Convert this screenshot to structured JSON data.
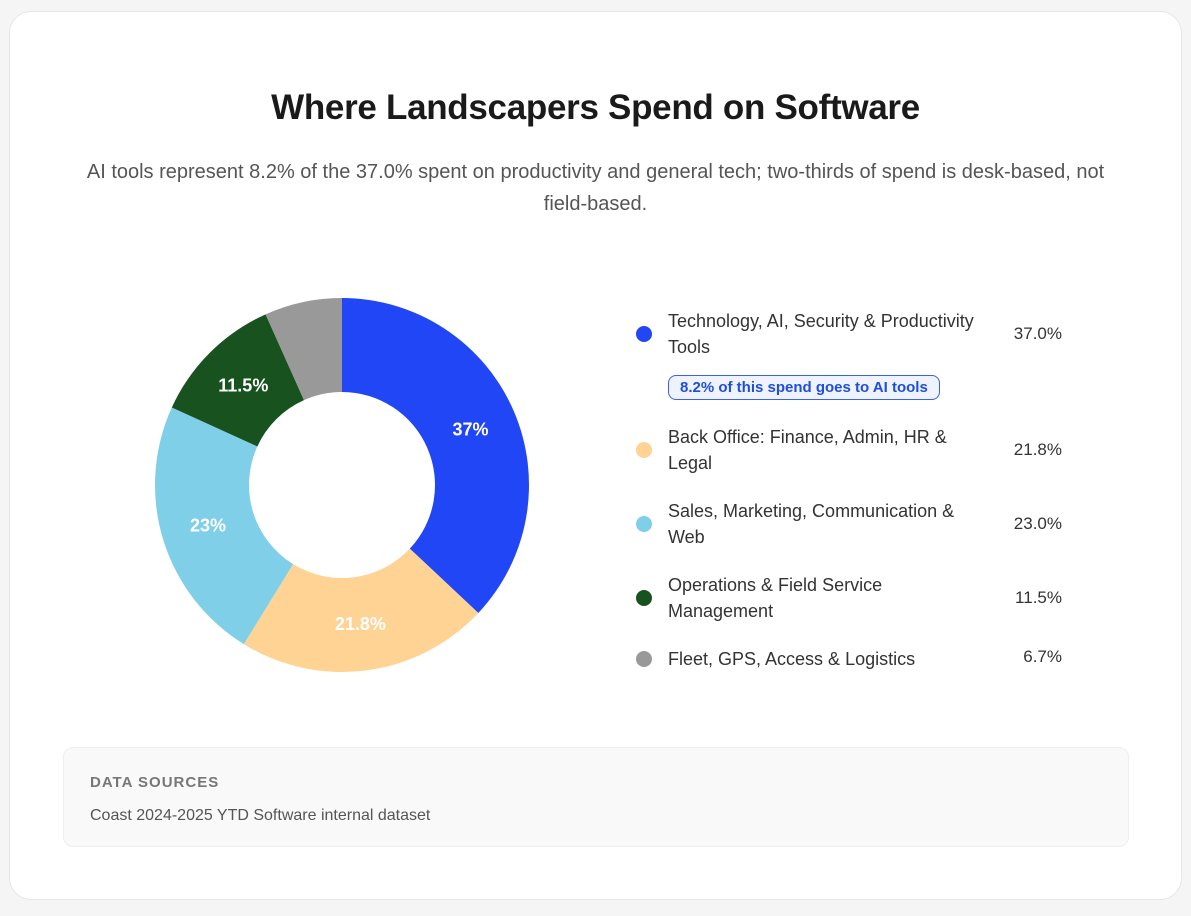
{
  "title": "Where Landscapers Spend on Software",
  "subtitle": "AI tools represent 8.2% of the 37.0% spent on productivity and general tech; two-thirds of spend is desk-based, not field-based.",
  "chart_data": {
    "type": "pie",
    "donut": true,
    "categories": [
      "Technology, AI, Security & Productivity Tools",
      "Back Office: Finance, Admin, HR & Legal",
      "Sales, Marketing, Communication & Web",
      "Operations & Field Service Management",
      "Fleet, GPS, Access & Logistics"
    ],
    "values": [
      37.0,
      21.8,
      23.0,
      11.5,
      6.7
    ],
    "slice_labels": [
      "37%",
      "21.8%",
      "23%",
      "11.5%",
      ""
    ],
    "legend_values": [
      "37.0%",
      "21.8%",
      "23.0%",
      "11.5%",
      "6.7%"
    ],
    "colors": [
      "#2146f5",
      "#fed394",
      "#80cfe8",
      "#17521f",
      "#999999"
    ],
    "annotation": "8.2% of this spend goes to AI tools",
    "legend_placement": "right"
  },
  "sources": {
    "title": "DATA SOURCES",
    "text": "Coast 2024-2025 YTD Software internal dataset"
  }
}
